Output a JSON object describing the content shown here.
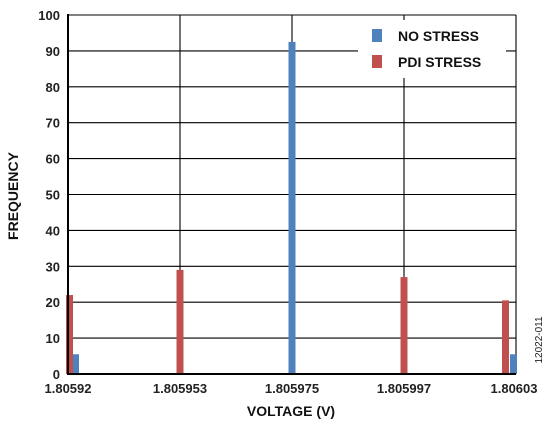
{
  "chart_data": {
    "type": "bar",
    "categories": [
      "1.80592",
      "1.805953",
      "1.805975",
      "1.805997",
      "1.80603"
    ],
    "series": [
      {
        "name": "NO STRESS",
        "color": "#4f81bd",
        "values": [
          5.5,
          0,
          92.5,
          0,
          5.5
        ]
      },
      {
        "name": "PDI STRESS",
        "color": "#c0504d",
        "values": [
          22,
          29,
          0,
          27,
          20.5
        ]
      }
    ],
    "xlabel": "VOLTAGE (V)",
    "ylabel": "FREQUENCY",
    "ylim": [
      0,
      100
    ],
    "yticks": [
      0,
      10,
      20,
      30,
      40,
      50,
      60,
      70,
      80,
      90,
      100
    ],
    "grid": true,
    "legend_position": "top-right",
    "figure_id": "12022-011"
  }
}
